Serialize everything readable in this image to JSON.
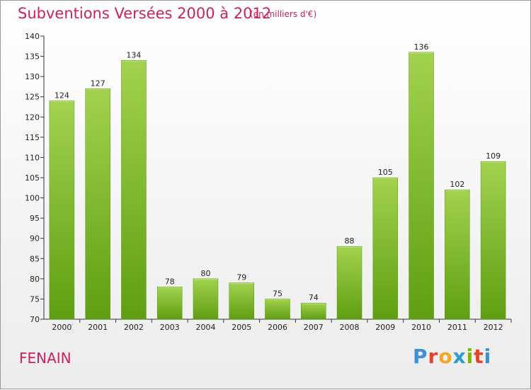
{
  "header": {
    "title": "Subventions Versées 2000 à 2012",
    "subtitle": "(en milliers d'€)"
  },
  "footer": {
    "town": "FENAIN",
    "brand": "Proxiti",
    "brand_colors": [
      "#3a8fd6",
      "#e8442a",
      "#f5a623",
      "#2e9ad0",
      "#7ab800",
      "#e8442a",
      "#3a8fd6"
    ]
  },
  "chart_data": {
    "type": "bar",
    "categories": [
      "2000",
      "2001",
      "2002",
      "2003",
      "2004",
      "2005",
      "2006",
      "2007",
      "2008",
      "2009",
      "2010",
      "2011",
      "2012"
    ],
    "values": [
      124,
      127,
      134,
      78,
      80,
      79,
      75,
      74,
      88,
      105,
      136,
      102,
      109
    ],
    "ylim": [
      70,
      140
    ],
    "yticks": [
      70,
      75,
      80,
      85,
      90,
      95,
      100,
      105,
      110,
      115,
      120,
      125,
      130,
      135,
      140
    ],
    "bar_color": "#7ab51d",
    "bar_color_light": "#9dcc4a",
    "grid": false
  }
}
